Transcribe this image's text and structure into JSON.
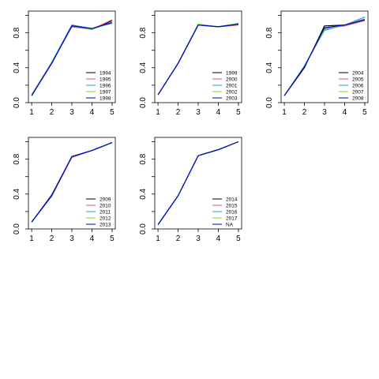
{
  "chart_data": [
    {
      "type": "line",
      "x": [
        1,
        2,
        3,
        4,
        5
      ],
      "ylim": [
        0.0,
        1.05
      ],
      "yticks": [
        "0.0",
        "0.4",
        "0.8"
      ],
      "xticks": [
        "1",
        "2",
        "3",
        "4",
        "5"
      ],
      "legend": "bottom-right",
      "series": [
        {
          "name": "1994",
          "color": "#000000",
          "values": [
            0.09,
            0.46,
            0.88,
            0.84,
            0.94
          ]
        },
        {
          "name": "1995",
          "color": "#DF536B",
          "values": [
            0.09,
            0.46,
            0.87,
            0.84,
            0.95
          ]
        },
        {
          "name": "1996",
          "color": "#2297E6",
          "values": [
            0.08,
            0.46,
            0.89,
            0.85,
            0.91
          ]
        },
        {
          "name": "1997",
          "color": "#61D04F",
          "values": [
            0.09,
            0.45,
            0.88,
            0.84,
            0.92
          ]
        },
        {
          "name": "1998",
          "color": "#0000CC",
          "values": [
            0.08,
            0.45,
            0.88,
            0.85,
            0.92
          ]
        }
      ]
    },
    {
      "type": "line",
      "x": [
        1,
        2,
        3,
        4,
        5
      ],
      "ylim": [
        0.0,
        1.05
      ],
      "yticks": [
        "0.0",
        "0.4",
        "0.8"
      ],
      "xticks": [
        "1",
        "2",
        "3",
        "4",
        "5"
      ],
      "legend": "bottom-right",
      "series": [
        {
          "name": "1999",
          "color": "#000000",
          "values": [
            0.09,
            0.45,
            0.89,
            0.87,
            0.9
          ]
        },
        {
          "name": "2000",
          "color": "#DF536B",
          "values": [
            0.09,
            0.45,
            0.89,
            0.87,
            0.89
          ]
        },
        {
          "name": "2001",
          "color": "#2297E6",
          "values": [
            0.09,
            0.45,
            0.89,
            0.87,
            0.9
          ]
        },
        {
          "name": "2002",
          "color": "#61D04F",
          "values": [
            0.09,
            0.45,
            0.9,
            0.87,
            0.91
          ]
        },
        {
          "name": "2003",
          "color": "#0000CC",
          "values": [
            0.09,
            0.45,
            0.89,
            0.87,
            0.9
          ]
        }
      ]
    },
    {
      "type": "line",
      "x": [
        1,
        2,
        3,
        4,
        5
      ],
      "ylim": [
        0.0,
        1.05
      ],
      "yticks": [
        "0.0",
        "0.4",
        "0.8"
      ],
      "xticks": [
        "1",
        "2",
        "3",
        "4",
        "5"
      ],
      "legend": "bottom-right",
      "series": [
        {
          "name": "2004",
          "color": "#000000",
          "values": [
            0.08,
            0.4,
            0.88,
            0.89,
            0.95
          ]
        },
        {
          "name": "2005",
          "color": "#DF536B",
          "values": [
            0.08,
            0.41,
            0.85,
            0.88,
            0.94
          ]
        },
        {
          "name": "2006",
          "color": "#2297E6",
          "values": [
            0.08,
            0.42,
            0.83,
            0.89,
            0.98
          ]
        },
        {
          "name": "2007",
          "color": "#61D04F",
          "values": [
            0.08,
            0.41,
            0.84,
            0.89,
            0.96
          ]
        },
        {
          "name": "2008",
          "color": "#0000CC",
          "values": [
            0.08,
            0.41,
            0.86,
            0.89,
            0.95
          ]
        }
      ]
    },
    {
      "type": "line",
      "x": [
        1,
        2,
        3,
        4,
        5
      ],
      "ylim": [
        0.0,
        1.05
      ],
      "yticks": [
        "0.0",
        "0.4",
        "0.8"
      ],
      "xticks": [
        "1",
        "2",
        "3",
        "4",
        "5"
      ],
      "legend": "bottom-right",
      "series": [
        {
          "name": "2009",
          "color": "#000000",
          "values": [
            0.08,
            0.39,
            0.83,
            0.9,
            0.99
          ]
        },
        {
          "name": "2010",
          "color": "#DF536B",
          "values": [
            0.08,
            0.38,
            0.82,
            0.9,
            0.99
          ]
        },
        {
          "name": "2011",
          "color": "#2297E6",
          "values": [
            0.08,
            0.38,
            0.83,
            0.9,
            0.99
          ]
        },
        {
          "name": "2012",
          "color": "#61D04F",
          "values": [
            0.08,
            0.38,
            0.83,
            0.9,
            0.99
          ]
        },
        {
          "name": "2013",
          "color": "#0000CC",
          "values": [
            0.08,
            0.38,
            0.83,
            0.9,
            0.99
          ]
        }
      ]
    },
    {
      "type": "line",
      "x": [
        1,
        2,
        3,
        4,
        5
      ],
      "ylim": [
        0.0,
        1.05
      ],
      "yticks": [
        "0.0",
        "0.4",
        "0.8"
      ],
      "xticks": [
        "1",
        "2",
        "3",
        "4",
        "5"
      ],
      "legend": "bottom-right",
      "series": [
        {
          "name": "2014",
          "color": "#000000",
          "values": [
            0.05,
            0.38,
            0.84,
            0.91,
            1.0
          ]
        },
        {
          "name": "2015",
          "color": "#DF536B",
          "values": [
            0.05,
            0.38,
            0.84,
            0.91,
            1.0
          ]
        },
        {
          "name": "2016",
          "color": "#2297E6",
          "values": [
            0.05,
            0.38,
            0.84,
            0.91,
            1.0
          ]
        },
        {
          "name": "2017",
          "color": "#61D04F",
          "values": [
            0.05,
            0.38,
            0.84,
            0.91,
            1.0
          ]
        },
        {
          "name": "NA",
          "color": "#0000CC",
          "values": [
            0.05,
            0.38,
            0.84,
            0.91,
            1.0
          ]
        }
      ]
    }
  ]
}
